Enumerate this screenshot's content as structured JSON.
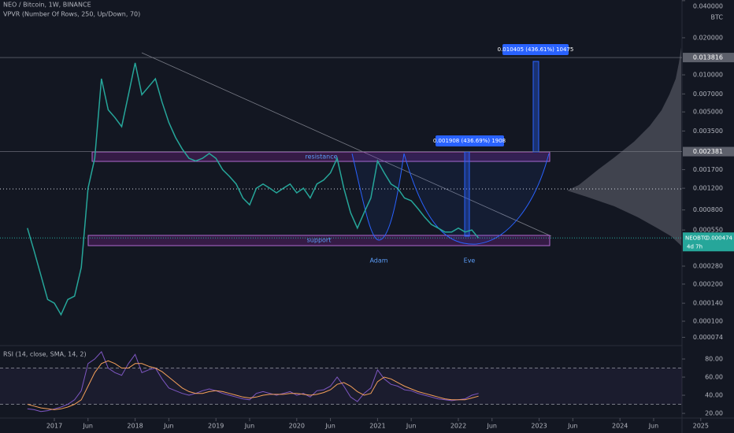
{
  "chart_data": [
    {
      "type": "line",
      "title": "NEO / Bitcoin, 1W, BINANCE",
      "subtitle": "VPVR (Number Of Rows, 250, Up/Down, 70)",
      "y_unit": "BTC",
      "log_scale": true,
      "x": [
        "2016-09",
        "2016-10",
        "2016-11",
        "2016-12",
        "2017-01",
        "2017-02",
        "2017-03",
        "2017-04",
        "2017-05",
        "2017-06",
        "2017-07",
        "2017-08",
        "2017-09",
        "2017-10",
        "2017-11",
        "2017-12",
        "2018-01",
        "2018-02",
        "2018-03",
        "2018-04",
        "2018-05",
        "2018-06",
        "2018-07",
        "2018-08",
        "2018-09",
        "2018-10",
        "2018-11",
        "2018-12",
        "2019-01",
        "2019-02",
        "2019-03",
        "2019-04",
        "2019-05",
        "2019-06",
        "2019-07",
        "2019-08",
        "2019-09",
        "2019-10",
        "2019-11",
        "2019-12",
        "2020-01",
        "2020-02",
        "2020-03",
        "2020-04",
        "2020-05",
        "2020-06",
        "2020-07",
        "2020-08",
        "2020-09",
        "2020-10",
        "2020-11",
        "2020-12",
        "2021-01",
        "2021-02",
        "2021-03",
        "2021-04",
        "2021-05",
        "2021-06",
        "2021-07",
        "2021-08",
        "2021-09",
        "2021-10",
        "2021-11",
        "2021-12",
        "2022-01",
        "2022-02",
        "2022-03",
        "2022-04"
      ],
      "series": [
        {
          "name": "NEOBTC",
          "color": "#26a69a",
          "values": [
            0.00057,
            0.00037,
            0.000236,
            0.00015,
            0.00014,
            0.000113,
            0.00015,
            0.00016,
            0.000273,
            0.0012,
            0.0021,
            0.0093,
            0.0052,
            0.0045,
            0.0038,
            0.0069,
            0.0125,
            0.0069,
            0.008,
            0.0093,
            0.006,
            0.0041,
            0.0031,
            0.0025,
            0.0021,
            0.002,
            0.0021,
            0.0023,
            0.0021,
            0.0017,
            0.0015,
            0.0013,
            0.001,
            0.00088,
            0.0012,
            0.0013,
            0.0012,
            0.0011,
            0.0012,
            0.0013,
            0.0011,
            0.0012,
            0.001,
            0.0013,
            0.0014,
            0.0016,
            0.0021,
            0.0012,
            0.00076,
            0.00057,
            0.00076,
            0.001,
            0.002,
            0.0016,
            0.0013,
            0.0012,
            0.001,
            0.00095,
            0.00082,
            0.0007,
            0.00061,
            0.00057,
            0.00053,
            0.00053,
            0.00057,
            0.00053,
            0.00055,
            0.000474
          ]
        }
      ],
      "ylim": [
        6.43e-05,
        0.0405
      ],
      "yticks": [
        {
          "value": 0.04,
          "label": "0.040000"
        },
        {
          "value": 0.02,
          "label": "0.020000"
        },
        {
          "value": 0.01,
          "label": "0.010000"
        },
        {
          "value": 0.007,
          "label": "0.007000"
        },
        {
          "value": 0.005,
          "label": "0.005000"
        },
        {
          "value": 0.0035,
          "label": "0.003500"
        },
        {
          "value": 0.0017,
          "label": "0.001700"
        },
        {
          "value": 0.0012,
          "label": "0.001200"
        },
        {
          "value": 0.0008,
          "label": "0.000800"
        },
        {
          "value": 0.00055,
          "label": "0.000550"
        },
        {
          "value": 0.00028,
          "label": "0.000280"
        },
        {
          "value": 0.0002,
          "label": "0.000200"
        },
        {
          "value": 0.00014,
          "label": "0.000140"
        },
        {
          "value": 0.0001,
          "label": "0.000100"
        },
        {
          "value": 7.4e-05,
          "label": "0.000074"
        }
      ],
      "levels": [
        0.013816,
        0.002381
      ],
      "last_value": 0.000474,
      "countdown": "4d 7h",
      "annotations": [
        "resistance",
        "support",
        "Adam",
        "Eve",
        "0.001908 (436.69%) 1908",
        "0.010405 (436.61%) 10475"
      ],
      "xticks": [
        {
          "value": "2017-01",
          "label": "2017"
        },
        {
          "value": "2017-06",
          "label": "Jun"
        },
        {
          "value": "2018-01",
          "label": "2018"
        },
        {
          "value": "2018-06",
          "label": "Jun"
        },
        {
          "value": "2019-01",
          "label": "2019"
        },
        {
          "value": "2019-06",
          "label": "Jun"
        },
        {
          "value": "2020-01",
          "label": "2020"
        },
        {
          "value": "2020-06",
          "label": "Jun"
        },
        {
          "value": "2021-01",
          "label": "2021"
        },
        {
          "value": "2021-06",
          "label": "Jun"
        },
        {
          "value": "2022-01",
          "label": "2022"
        },
        {
          "value": "2022-06",
          "label": "Jun"
        },
        {
          "value": "2023-01",
          "label": "2023"
        },
        {
          "value": "2023-06",
          "label": "Jun"
        },
        {
          "value": "2024-01",
          "label": "2024"
        },
        {
          "value": "2024-06",
          "label": "Jun"
        },
        {
          "value": "2025-01",
          "label": "2025"
        }
      ]
    },
    {
      "type": "line",
      "title": "RSI (14, close, SMA, 14, 2)",
      "series": [
        {
          "color": "#7e57c2",
          "values": [
            25,
            24,
            22,
            23,
            25,
            27,
            30,
            35,
            45,
            75,
            80,
            88,
            70,
            65,
            62,
            75,
            85,
            65,
            68,
            70,
            58,
            48,
            45,
            42,
            40,
            42,
            45,
            47,
            45,
            42,
            40,
            38,
            36,
            35,
            42,
            44,
            42,
            40,
            42,
            44,
            40,
            42,
            38,
            45,
            46,
            50,
            60,
            50,
            38,
            33,
            42,
            48,
            68,
            58,
            52,
            50,
            46,
            45,
            42,
            40,
            38,
            36,
            35,
            34,
            35,
            36,
            40,
            42
          ]
        },
        {
          "color": "#f5a05a",
          "values": [
            30,
            28,
            26,
            25,
            24,
            25,
            27,
            30,
            35,
            50,
            65,
            75,
            78,
            75,
            70,
            70,
            75,
            75,
            72,
            70,
            66,
            60,
            54,
            48,
            44,
            42,
            42,
            44,
            45,
            44,
            42,
            40,
            38,
            37,
            38,
            40,
            41,
            41,
            41,
            42,
            42,
            41,
            40,
            41,
            43,
            46,
            52,
            54,
            50,
            44,
            40,
            42,
            55,
            60,
            58,
            54,
            50,
            47,
            44,
            42,
            40,
            38,
            36,
            35,
            35,
            35,
            37,
            39
          ]
        }
      ],
      "ylim": [
        15.7,
        93.9
      ],
      "yticks": [
        {
          "value": 80,
          "label": "80.00"
        },
        {
          "value": 60,
          "label": "60.00"
        },
        {
          "value": 40,
          "label": "40.00"
        },
        {
          "value": 20,
          "label": "20.00"
        }
      ],
      "bands": [
        70,
        30
      ]
    }
  ]
}
